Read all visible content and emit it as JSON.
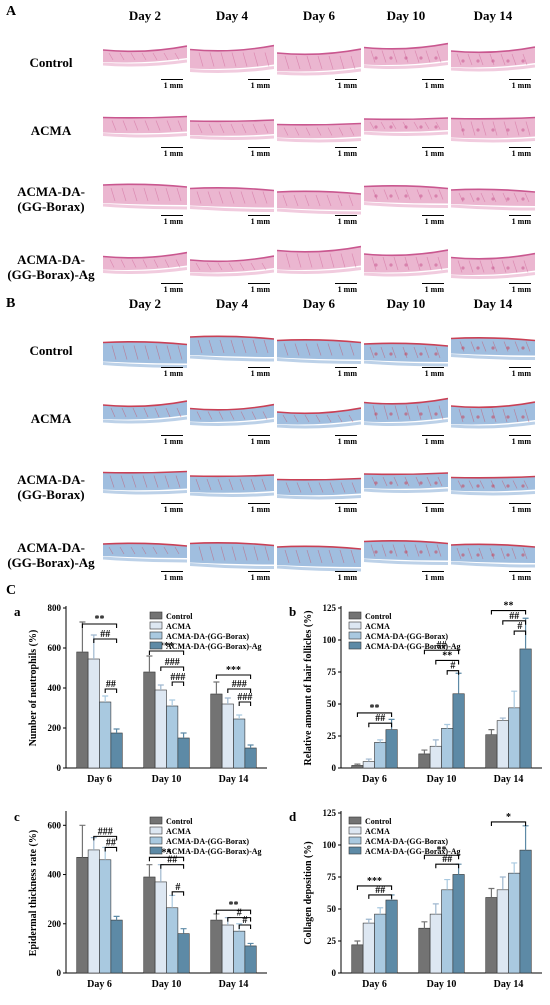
{
  "figure": {
    "panel_A": "A",
    "panel_B": "B",
    "panel_C": "C",
    "days": [
      "Day 2",
      "Day 4",
      "Day 6",
      "Day 10",
      "Day 14"
    ],
    "groups": [
      {
        "line1": "Control",
        "line2": ""
      },
      {
        "line1": "ACMA",
        "line2": ""
      },
      {
        "line1": "ACMA-DA-",
        "line2": "(GG-Borax)"
      },
      {
        "line1": "ACMA-DA-",
        "line2": "(GG-Borax)-Ag"
      }
    ],
    "scale_bar": "1 mm",
    "stain_colors": {
      "he_tissue": "#e8a9c8",
      "he_dark": "#c9578f",
      "masson_blue": "#8fb3d9",
      "masson_red": "#c94055"
    }
  },
  "chart_data": [
    {
      "type": "bar",
      "subpanel": "a",
      "ylabel": "Number of neutrophils (%)",
      "categories": [
        "Day 6",
        "Day 10",
        "Day 14"
      ],
      "ylim": [
        0,
        800
      ],
      "yticks": [
        "0",
        "200",
        "400",
        "600",
        "800"
      ],
      "ytick_values": [
        0,
        200,
        400,
        600,
        800
      ],
      "legend": "top-right",
      "series": [
        {
          "name": "Control",
          "values": [
            580,
            480,
            370
          ],
          "errors": [
            150,
            80,
            60
          ]
        },
        {
          "name": "ACMA",
          "values": [
            545,
            390,
            320
          ],
          "errors": [
            120,
            25,
            30
          ]
        },
        {
          "name": "ACMA-DA-(GG-Borax)",
          "values": [
            330,
            310,
            245
          ],
          "errors": [
            30,
            30,
            20
          ]
        },
        {
          "name": "ACMA-DA-(GG-Borax)-Ag",
          "values": [
            175,
            150,
            100
          ],
          "errors": [
            20,
            25,
            15
          ]
        }
      ],
      "annotations": [
        {
          "label": "**",
          "cat": 0,
          "from": 0,
          "to": 3,
          "level": 720
        },
        {
          "label": "##",
          "cat": 0,
          "from": 1,
          "to": 3,
          "level": 645
        },
        {
          "label": "##",
          "cat": 0,
          "from": 2,
          "to": 3,
          "level": 395
        },
        {
          "label": "***",
          "cat": 1,
          "from": 0,
          "to": 3,
          "level": 585
        },
        {
          "label": "###",
          "cat": 1,
          "from": 1,
          "to": 3,
          "level": 505
        },
        {
          "label": "###",
          "cat": 1,
          "from": 2,
          "to": 3,
          "level": 430
        },
        {
          "label": "***",
          "cat": 2,
          "from": 0,
          "to": 3,
          "level": 465
        },
        {
          "label": "###",
          "cat": 2,
          "from": 1,
          "to": 3,
          "level": 395
        },
        {
          "label": "###",
          "cat": 2,
          "from": 2,
          "to": 3,
          "level": 330
        }
      ]
    },
    {
      "type": "bar",
      "subpanel": "b",
      "ylabel": "Relative amount of hair follicles (%)",
      "categories": [
        "Day 6",
        "Day 10",
        "Day 14"
      ],
      "ylim": [
        0,
        125
      ],
      "yticks": [
        "0",
        "25",
        "50",
        "75",
        "100",
        "125"
      ],
      "ytick_values": [
        0,
        25,
        50,
        75,
        100,
        125
      ],
      "legend": "top-left",
      "series": [
        {
          "name": "Control",
          "values": [
            2,
            11,
            26
          ],
          "errors": [
            1,
            3,
            4
          ]
        },
        {
          "name": "ACMA",
          "values": [
            5,
            17,
            37
          ],
          "errors": [
            2,
            5,
            2
          ]
        },
        {
          "name": "ACMA-DA-(GG-Borax)",
          "values": [
            20,
            31,
            47
          ],
          "errors": [
            2,
            3,
            13
          ]
        },
        {
          "name": "ACMA-DA-(GG-Borax)-Ag",
          "values": [
            30,
            58,
            93
          ],
          "errors": [
            8,
            16,
            24
          ]
        }
      ],
      "annotations": [
        {
          "label": "**",
          "cat": 0,
          "from": 0,
          "to": 3,
          "level": 43
        },
        {
          "label": "##",
          "cat": 0,
          "from": 1,
          "to": 3,
          "level": 35
        },
        {
          "label": "##",
          "cat": 1,
          "from": 0,
          "to": 3,
          "level": 92
        },
        {
          "label": "**",
          "cat": 1,
          "from": 1,
          "to": 3,
          "level": 84
        },
        {
          "label": "#",
          "cat": 1,
          "from": 2,
          "to": 3,
          "level": 76
        },
        {
          "label": "**",
          "cat": 2,
          "from": 0,
          "to": 3,
          "level": 123
        },
        {
          "label": "##",
          "cat": 2,
          "from": 1,
          "to": 3,
          "level": 115
        },
        {
          "label": "#",
          "cat": 2,
          "from": 2,
          "to": 3,
          "level": 107
        }
      ]
    },
    {
      "type": "bar",
      "subpanel": "c",
      "ylabel": "Epidermal thickness rate (%)",
      "categories": [
        "Day 6",
        "Day 10",
        "Day 14"
      ],
      "ylim": [
        0,
        650
      ],
      "yticks": [
        "0",
        "200",
        "400",
        "600"
      ],
      "ytick_values": [
        0,
        200,
        400,
        600
      ],
      "legend": "top-right",
      "series": [
        {
          "name": "Control",
          "values": [
            470,
            390,
            215
          ],
          "errors": [
            130,
            50,
            25
          ]
        },
        {
          "name": "ACMA",
          "values": [
            500,
            370,
            195
          ],
          "errors": [
            50,
            70,
            30
          ]
        },
        {
          "name": "ACMA-DA-(GG-Borax)",
          "values": [
            460,
            265,
            170
          ],
          "errors": [
            50,
            50,
            30
          ]
        },
        {
          "name": "ACMA-DA-(GG-Borax)-Ag",
          "values": [
            215,
            160,
            110
          ],
          "errors": [
            15,
            20,
            10
          ]
        }
      ],
      "annotations": [
        {
          "label": "###",
          "cat": 0,
          "from": 1,
          "to": 3,
          "level": 555
        },
        {
          "label": "##",
          "cat": 0,
          "from": 2,
          "to": 3,
          "level": 510
        },
        {
          "label": "**",
          "cat": 1,
          "from": 0,
          "to": 3,
          "level": 470
        },
        {
          "label": "##",
          "cat": 1,
          "from": 1,
          "to": 3,
          "level": 440
        },
        {
          "label": "#",
          "cat": 1,
          "from": 2,
          "to": 3,
          "level": 330
        },
        {
          "label": "**",
          "cat": 2,
          "from": 0,
          "to": 3,
          "level": 255
        },
        {
          "label": "#",
          "cat": 2,
          "from": 1,
          "to": 3,
          "level": 225
        },
        {
          "label": "#",
          "cat": 2,
          "from": 2,
          "to": 3,
          "level": 195
        }
      ]
    },
    {
      "type": "bar",
      "subpanel": "d",
      "ylabel": "Collagen deposition (%)",
      "categories": [
        "Day 6",
        "Day 10",
        "Day 14"
      ],
      "ylim": [
        0,
        125
      ],
      "yticks": [
        "0",
        "25",
        "50",
        "75",
        "100",
        "125"
      ],
      "ytick_values": [
        0,
        25,
        50,
        75,
        100,
        125
      ],
      "legend": "top-left",
      "series": [
        {
          "name": "Control",
          "values": [
            22,
            35,
            59
          ],
          "errors": [
            3,
            5,
            7
          ]
        },
        {
          "name": "ACMA",
          "values": [
            39,
            46,
            65
          ],
          "errors": [
            3,
            8,
            10
          ]
        },
        {
          "name": "ACMA-DA-(GG-Borax)",
          "values": [
            46,
            65,
            78
          ],
          "errors": [
            5,
            8,
            8
          ]
        },
        {
          "name": "ACMA-DA-(GG-Borax)-Ag",
          "values": [
            57,
            77,
            96
          ],
          "errors": [
            4,
            8,
            19
          ]
        }
      ],
      "annotations": [
        {
          "label": "***",
          "cat": 0,
          "from": 0,
          "to": 3,
          "level": 68
        },
        {
          "label": "##",
          "cat": 0,
          "from": 1,
          "to": 3,
          "level": 61
        },
        {
          "label": "**",
          "cat": 1,
          "from": 0,
          "to": 3,
          "level": 92
        },
        {
          "label": "##",
          "cat": 1,
          "from": 1,
          "to": 3,
          "level": 85
        },
        {
          "label": "*",
          "cat": 2,
          "from": 0,
          "to": 3,
          "level": 118
        }
      ]
    }
  ],
  "series_colors": [
    "#737373",
    "#dde7f2",
    "#a9c9e0",
    "#5d8aa6"
  ]
}
